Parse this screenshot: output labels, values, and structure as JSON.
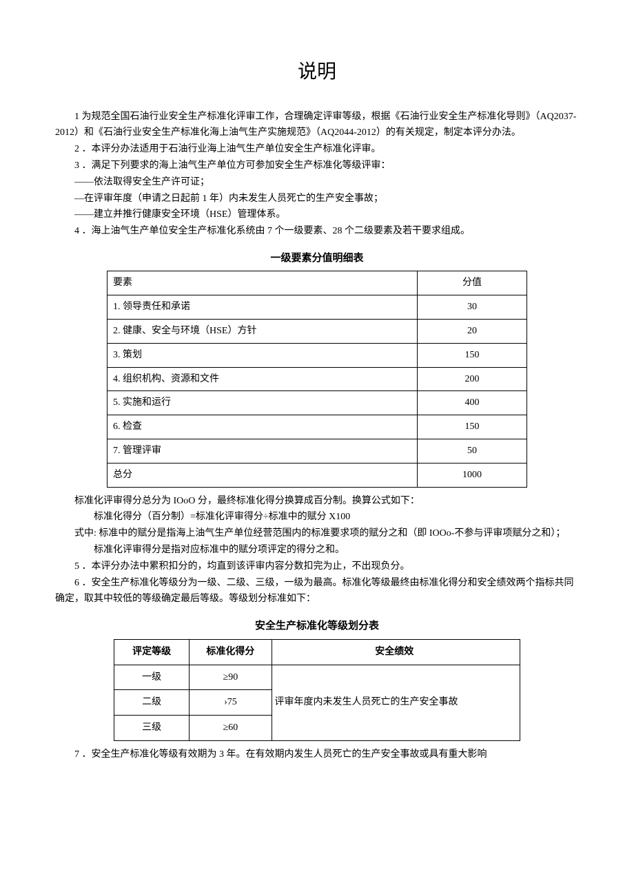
{
  "title": "说明",
  "paras": {
    "p1": "1 为规范全国石油行业安全生产标准化评审工作，合理确定评审等级，根据《石油行业安全生产标准化导则》（AQ2037-2012）和《石油行业安全生产标准化海上油气生产实施规范》（AQ2044-2012）的有关规定，制定本评分办法。",
    "p2": "2 ．本评分办法适用于石油行业海上油气生产单位安全生产标准化评审。",
    "p3": "3 ．满足下列要求的海上油气生产单位方可参加安全生产标准化等级评审：",
    "p3a": "——依法取得安全生产许可证；",
    "p3b": "—在评审年度（申请之日起前 1 年）内未发生人员死亡的生产安全事故；",
    "p3c": "——建立并推行健康安全环境（HSE）管理体系。",
    "p4": "4 ．海上油气生产单位安全生产标准化系统由 7 个一级要素、28 个二级要素及若干要求组成。",
    "p5a": "标准化评审得分总分为 IOoO 分，最终标准化得分换算成百分制。换算公式如下：",
    "p5b": "标准化得分（百分制）=标准化评审得分÷标准中的赋分 X100",
    "p5c": "式中: 标准中的赋分是指海上油气生产单位经营范围内的标准要求项的赋分之和（即 IOOo-不参与评审项赋分之和）；",
    "p5d": "标准化评审得分是指对应标准中的赋分项评定的得分之和。",
    "p6": "5 ．本评分办法中累积扣分的，均直到该评审内容分数扣完为止，不出现负分。",
    "p7": "6 ．安全生产标准化等级分为一级、二级、三级，一级为最高。标准化等级最终由标准化得分和安全绩效两个指标共同确定，取其中较低的等级确定最后等级。等级划分标准如下：",
    "p8": "7 ．安全生产标准化等级有效期为 3 年。在有效期内发生人员死亡的生产安全事故或具有重大影响"
  },
  "table1": {
    "title": "一级要素分值明细表",
    "headers": {
      "element": "要素",
      "score": "分值"
    },
    "rows": [
      {
        "element": "1. 领导责任和承诺",
        "score": "30"
      },
      {
        "element": "2. 健康、安全与环境（HSE）方针",
        "score": "20"
      },
      {
        "element": "3. 策划",
        "score": "150"
      },
      {
        "element": "4. 组织机构、资源和文件",
        "score": "200"
      },
      {
        "element": "5. 实施和运行",
        "score": "400"
      },
      {
        "element": "6. 检查",
        "score": "150"
      },
      {
        "element": "7. 管理评审",
        "score": "50"
      },
      {
        "element": "总分",
        "score": "1000"
      }
    ]
  },
  "table2": {
    "title": "安全生产标准化等级划分表",
    "headers": {
      "grade": "评定等级",
      "std": "标准化得分",
      "perf": "安全绩效"
    },
    "rows": [
      {
        "grade": "一级",
        "std": "≥90"
      },
      {
        "grade": "二级",
        "std": "›75"
      },
      {
        "grade": "三级",
        "std": "≥60"
      }
    ],
    "perf_merged": "评审年度内未发生人员死亡的生产安全事故"
  }
}
